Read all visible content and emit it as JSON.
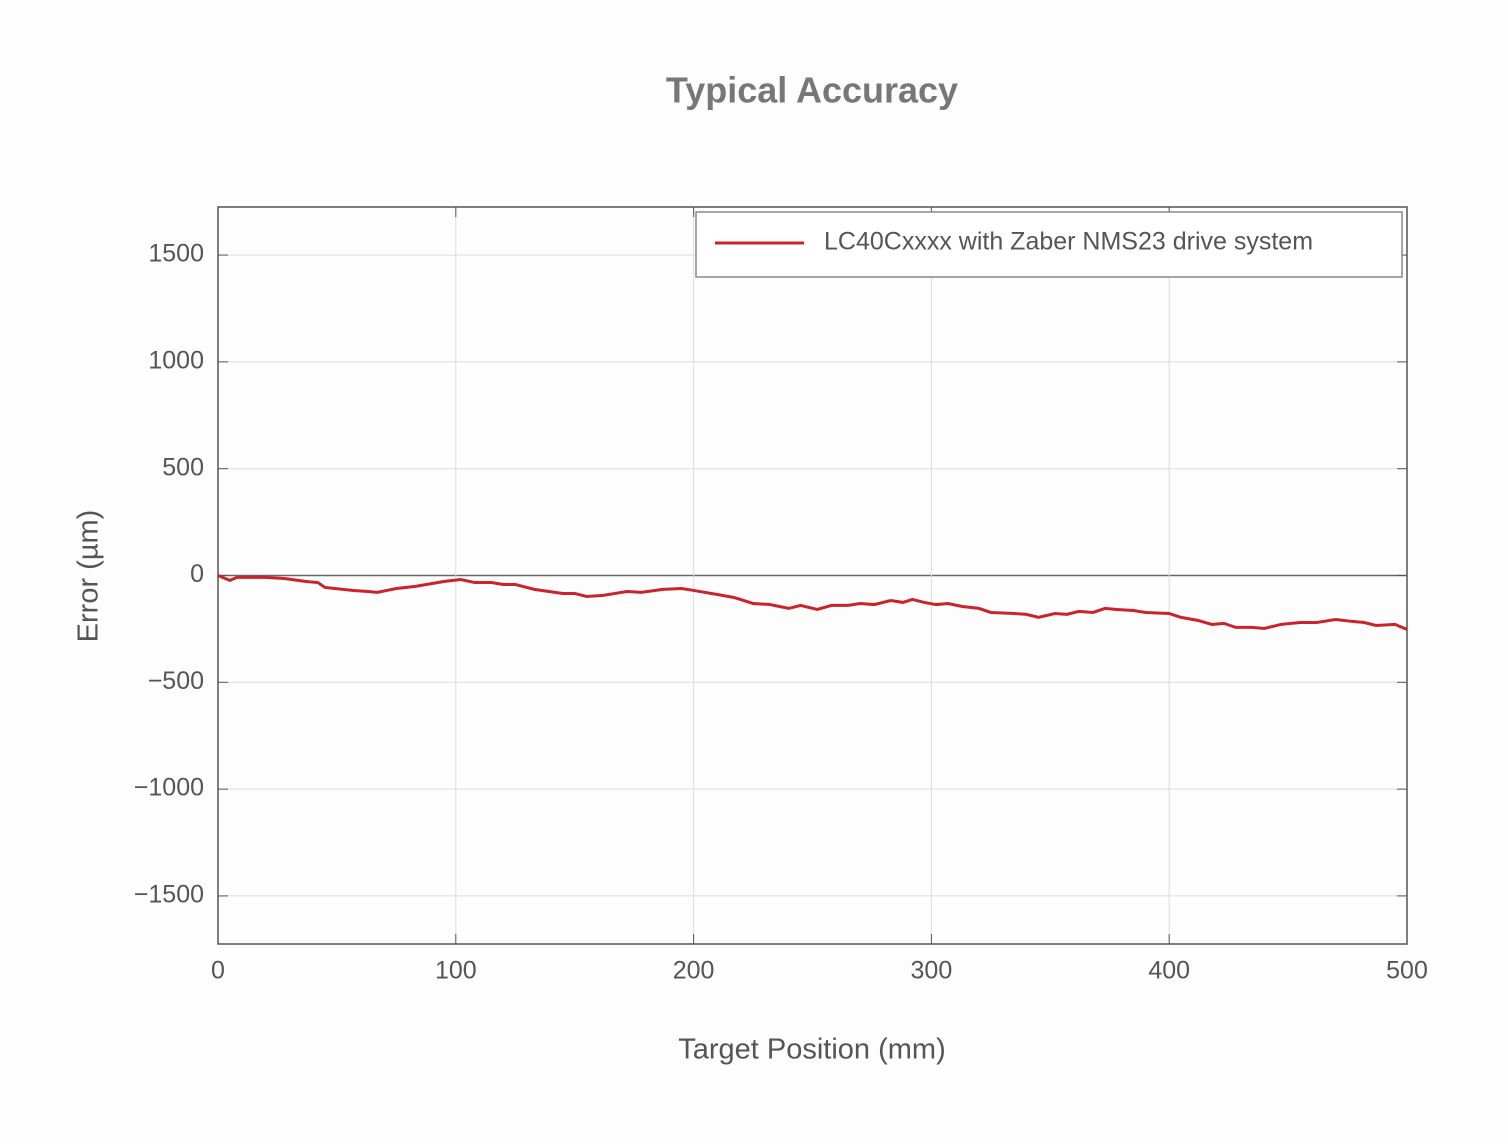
{
  "chart_data": {
    "type": "line",
    "title": "Typical Accuracy",
    "x_label": "Target Position (mm)",
    "y_label": "Error (µm)",
    "xlim": [
      0,
      500
    ],
    "ylim": [
      -1725,
      1725
    ],
    "xticks": [
      0,
      100,
      200,
      300,
      400,
      500
    ],
    "yticks": [
      {
        "value": -1500,
        "label": "−1500"
      },
      {
        "value": -1000,
        "label": "−1000"
      },
      {
        "value": -500,
        "label": "−500"
      },
      0,
      500,
      1000,
      1500
    ],
    "grid": true,
    "legend": "upper right",
    "x": [
      0,
      5,
      8,
      20,
      28,
      37,
      42,
      45,
      57,
      63,
      67,
      75,
      83,
      95,
      102,
      108,
      115,
      120,
      125,
      133,
      145,
      150,
      155,
      162,
      167,
      172,
      178,
      187,
      195,
      200,
      210,
      217,
      225,
      232,
      240,
      245,
      252,
      258,
      265,
      270,
      276,
      283,
      288,
      292,
      297,
      302,
      307,
      313,
      320,
      325,
      335,
      340,
      345,
      352,
      357,
      362,
      368,
      373,
      378,
      385,
      390,
      400,
      405,
      412,
      418,
      423,
      428,
      435,
      440,
      447,
      455,
      462,
      470,
      477,
      482,
      487,
      495,
      500
    ],
    "series": [
      {
        "name": "LC40Cxxxx with Zaber NMS23 drive system",
        "color": "#cc2229",
        "values": [
          0,
          -23,
          -9,
          -9,
          -14,
          -28,
          -33,
          -56,
          -70,
          -75,
          -79,
          -61,
          -51,
          -28,
          -19,
          -33,
          -33,
          -42,
          -42,
          -65,
          -84,
          -84,
          -98,
          -93,
          -84,
          -75,
          -79,
          -65,
          -61,
          -70,
          -89,
          -103,
          -131,
          -136,
          -154,
          -140,
          -159,
          -140,
          -140,
          -131,
          -136,
          -117,
          -126,
          -112,
          -126,
          -136,
          -131,
          -145,
          -154,
          -173,
          -178,
          -182,
          -196,
          -178,
          -182,
          -168,
          -173,
          -154,
          -159,
          -164,
          -173,
          -178,
          -196,
          -210,
          -229,
          -224,
          -243,
          -243,
          -248,
          -229,
          -220,
          -220,
          -206,
          -215,
          -220,
          -234,
          -229,
          -252
        ]
      }
    ]
  }
}
